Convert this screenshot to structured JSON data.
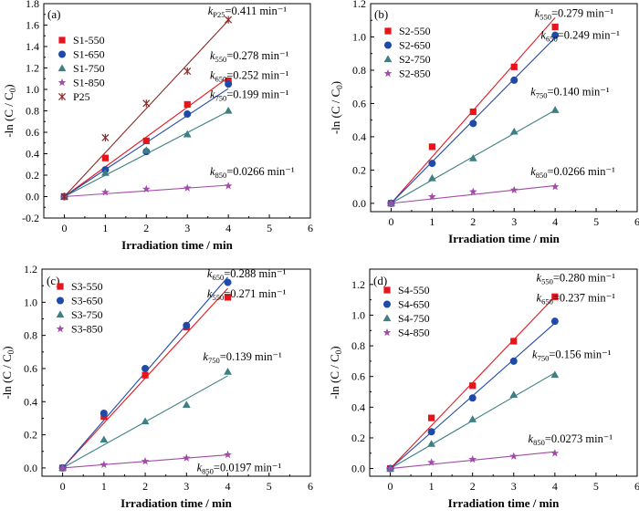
{
  "figure": {
    "colors": {
      "550": "#e8141c",
      "650": "#1f4aa8",
      "750": "#3d7f82",
      "850": "#a24ba8",
      "P25": "#8a2a26"
    },
    "panels": [
      {
        "label": "(a)",
        "xlabel": "Irradiation time / min",
        "ylabel": "-ln (C / C",
        "ylabel_sub": "0",
        "ylabel_end": ")",
        "chart_data": {
          "type": "scatter",
          "xlim": [
            -0.5,
            6
          ],
          "ylim": [
            -0.2,
            1.8
          ],
          "xticks": [
            0,
            1,
            2,
            3,
            4,
            5,
            6
          ],
          "yticks": [
            -0.2,
            0.0,
            0.2,
            0.4,
            0.6,
            0.8,
            1.0,
            1.2,
            1.4,
            1.6,
            1.8
          ],
          "ytick_labels": [
            "-0.2",
            "0.0",
            "0.2",
            "0.4",
            "0.6",
            "0.8",
            "1.0",
            "1.2",
            "1.4",
            "1.6",
            "1.8"
          ],
          "legend_position": "top-left",
          "series": [
            {
              "name": "S1-550",
              "key": "550",
              "marker": "square",
              "x": [
                0,
                1,
                2,
                3,
                4
              ],
              "y": [
                0.0,
                0.36,
                0.52,
                0.86,
                1.08
              ],
              "fit_slope": 0.278
            },
            {
              "name": "S1-650",
              "key": "650",
              "marker": "circle",
              "x": [
                0,
                1,
                2,
                3,
                4
              ],
              "y": [
                0.0,
                0.25,
                0.42,
                0.77,
                1.05
              ],
              "fit_slope": 0.252
            },
            {
              "name": "S1-750",
              "key": "750",
              "marker": "triangle",
              "x": [
                0,
                1,
                2,
                3,
                4
              ],
              "y": [
                0.0,
                0.22,
                0.43,
                0.58,
                0.8
              ],
              "fit_slope": 0.199
            },
            {
              "name": "S1-850",
              "key": "850",
              "marker": "star",
              "x": [
                0,
                1,
                2,
                3,
                4
              ],
              "y": [
                0.0,
                0.04,
                0.07,
                0.08,
                0.1
              ],
              "fit_slope": 0.0266
            },
            {
              "name": "P25",
              "key": "P25",
              "marker": "cross",
              "x": [
                0,
                1,
                2,
                3,
                4
              ],
              "y": [
                0.0,
                0.55,
                0.87,
                1.17,
                1.65
              ],
              "fit_slope": 0.411
            }
          ],
          "annotations": [
            {
              "k": "k",
              "sub": "P25",
              "value": "=0.411 min⁻¹",
              "at": [
                3.5,
                1.7
              ]
            },
            {
              "k": "k",
              "sub": "550",
              "value": "=0.278 min⁻¹",
              "at": [
                3.55,
                1.28
              ]
            },
            {
              "k": "k",
              "sub": "650",
              "value": "=0.252 min⁻¹",
              "at": [
                3.55,
                1.1
              ]
            },
            {
              "k": "k",
              "sub": "750",
              "value": "=0.199 min⁻¹",
              "at": [
                3.55,
                0.92
              ]
            },
            {
              "k": "k",
              "sub": "850",
              "value": "=0.0266 min⁻¹",
              "at": [
                3.55,
                0.2
              ]
            }
          ]
        }
      },
      {
        "label": "(b)",
        "xlabel": "Irradiation time / min",
        "ylabel": "-ln (C / C",
        "ylabel_sub": "0",
        "ylabel_end": ")",
        "chart_data": {
          "type": "scatter",
          "xlim": [
            -0.5,
            6
          ],
          "ylim": [
            -0.05,
            1.2
          ],
          "xticks": [
            0,
            1,
            2,
            3,
            4,
            5,
            6
          ],
          "yticks": [
            0.0,
            0.2,
            0.4,
            0.6,
            0.8,
            1.0,
            1.2
          ],
          "ytick_labels": [
            "0.0",
            "0.2",
            "0.4",
            "0.6",
            "0.8",
            "1.0",
            "1.2"
          ],
          "legend_position": "top-left",
          "series": [
            {
              "name": "S2-550",
              "key": "550",
              "marker": "square",
              "x": [
                0,
                1,
                2,
                3,
                4
              ],
              "y": [
                0.0,
                0.34,
                0.55,
                0.82,
                1.06
              ],
              "fit_slope": 0.279
            },
            {
              "name": "S2-650",
              "key": "650",
              "marker": "circle",
              "x": [
                0,
                1,
                2,
                3,
                4
              ],
              "y": [
                0.0,
                0.24,
                0.48,
                0.74,
                1.01
              ],
              "fit_slope": 0.249
            },
            {
              "name": "S2-750",
              "key": "750",
              "marker": "triangle",
              "x": [
                0,
                1,
                2,
                3,
                4
              ],
              "y": [
                0.0,
                0.15,
                0.27,
                0.43,
                0.56
              ],
              "fit_slope": 0.14
            },
            {
              "name": "S2-850",
              "key": "850",
              "marker": "star",
              "x": [
                0,
                1,
                2,
                3,
                4
              ],
              "y": [
                0.0,
                0.04,
                0.07,
                0.08,
                0.1
              ],
              "fit_slope": 0.0266
            }
          ],
          "annotations": [
            {
              "k": "k",
              "sub": "550",
              "value": "=0.279 min⁻¹",
              "at": [
                3.5,
                1.12
              ]
            },
            {
              "k": "k",
              "sub": "650",
              "value": "=0.249 min⁻¹",
              "at": [
                3.65,
                0.99
              ]
            },
            {
              "k": "k",
              "sub": "750",
              "value": "=0.140 min⁻¹",
              "at": [
                3.4,
                0.65
              ]
            },
            {
              "k": "k",
              "sub": "850",
              "value": "=0.0266 min⁻¹",
              "at": [
                3.4,
                0.17
              ]
            }
          ]
        }
      },
      {
        "label": "(c)",
        "xlabel": "Irradiation time / min",
        "ylabel": "-ln (C / C",
        "ylabel_sub": "0",
        "ylabel_end": ")",
        "chart_data": {
          "type": "scatter",
          "xlim": [
            -0.5,
            6
          ],
          "ylim": [
            -0.05,
            1.2
          ],
          "xticks": [
            0,
            1,
            2,
            3,
            4,
            5,
            6
          ],
          "yticks": [
            0.0,
            0.2,
            0.4,
            0.6,
            0.8,
            1.0,
            1.2
          ],
          "ytick_labels": [
            "0.0",
            "0.2",
            "0.4",
            "0.6",
            "0.8",
            "1.0",
            "1.2"
          ],
          "legend_position": "top-left",
          "series": [
            {
              "name": "S3-550",
              "key": "550",
              "marker": "square",
              "x": [
                0,
                1,
                2,
                3,
                4
              ],
              "y": [
                0.0,
                0.31,
                0.56,
                0.85,
                1.03
              ],
              "fit_slope": 0.271
            },
            {
              "name": "S3-650",
              "key": "650",
              "marker": "circle",
              "x": [
                0,
                1,
                2,
                3,
                4
              ],
              "y": [
                0.0,
                0.33,
                0.6,
                0.86,
                1.12
              ],
              "fit_slope": 0.288
            },
            {
              "name": "S3-750",
              "key": "750",
              "marker": "triangle",
              "x": [
                0,
                1,
                2,
                3,
                4
              ],
              "y": [
                0.0,
                0.17,
                0.28,
                0.38,
                0.58
              ],
              "fit_slope": 0.139
            },
            {
              "name": "S3-850",
              "key": "850",
              "marker": "star",
              "x": [
                0,
                1,
                2,
                3,
                4
              ],
              "y": [
                0.0,
                0.02,
                0.04,
                0.06,
                0.08
              ],
              "fit_slope": 0.0197
            }
          ],
          "annotations": [
            {
              "k": "k",
              "sub": "650",
              "value": "=0.288 min⁻¹",
              "at": [
                3.5,
                1.15
              ]
            },
            {
              "k": "k",
              "sub": "550",
              "value": "=0.271 min⁻¹",
              "at": [
                3.5,
                1.03
              ]
            },
            {
              "k": "k",
              "sub": "750",
              "value": "=0.139 min⁻¹",
              "at": [
                3.4,
                0.65
              ]
            },
            {
              "k": "k",
              "sub": "850",
              "value": "=0.0197 min⁻¹",
              "at": [
                3.25,
                -0.02
              ]
            }
          ]
        }
      },
      {
        "label": "(d)",
        "xlabel": "Irradiation time / min",
        "ylabel": "-ln (C / C",
        "ylabel_sub": "0",
        "ylabel_end": ")",
        "chart_data": {
          "type": "scatter",
          "xlim": [
            -0.5,
            6
          ],
          "ylim": [
            -0.05,
            1.3
          ],
          "xticks": [
            0,
            1,
            2,
            3,
            4,
            5,
            6
          ],
          "yticks": [
            0.0,
            0.2,
            0.4,
            0.6,
            0.8,
            1.0,
            1.2
          ],
          "ytick_labels": [
            "0.0",
            "0.2",
            "0.4",
            "0.6",
            "0.8",
            "1.0",
            "1.2"
          ],
          "legend_position": "top-left",
          "series": [
            {
              "name": "S4-550",
              "key": "550",
              "marker": "square",
              "x": [
                0,
                1,
                2,
                3,
                4
              ],
              "y": [
                0.0,
                0.33,
                0.54,
                0.83,
                1.12
              ],
              "fit_slope": 0.28
            },
            {
              "name": "S4-650",
              "key": "650",
              "marker": "circle",
              "x": [
                0,
                1,
                2,
                3,
                4
              ],
              "y": [
                0.0,
                0.24,
                0.46,
                0.7,
                0.96
              ],
              "fit_slope": 0.237
            },
            {
              "name": "S4-750",
              "key": "750",
              "marker": "triangle",
              "x": [
                0,
                1,
                2,
                3,
                4
              ],
              "y": [
                0.0,
                0.16,
                0.32,
                0.48,
                0.61
              ],
              "fit_slope": 0.156
            },
            {
              "name": "S4-850",
              "key": "850",
              "marker": "star",
              "x": [
                0,
                1,
                2,
                3,
                4
              ],
              "y": [
                0.0,
                0.04,
                0.06,
                0.08,
                0.1
              ],
              "fit_slope": 0.0273
            }
          ],
          "annotations": [
            {
              "k": "k",
              "sub": "550",
              "value": "=0.280 min⁻¹",
              "at": [
                3.55,
                1.22
              ]
            },
            {
              "k": "k",
              "sub": "650",
              "value": "=0.237 min⁻¹",
              "at": [
                3.55,
                1.09
              ]
            },
            {
              "k": "k",
              "sub": "750",
              "value": "=0.156 min⁻¹",
              "at": [
                3.45,
                0.72
              ]
            },
            {
              "k": "k",
              "sub": "850",
              "value": "=0.0273 min⁻¹",
              "at": [
                3.35,
                0.17
              ]
            }
          ]
        }
      }
    ]
  }
}
